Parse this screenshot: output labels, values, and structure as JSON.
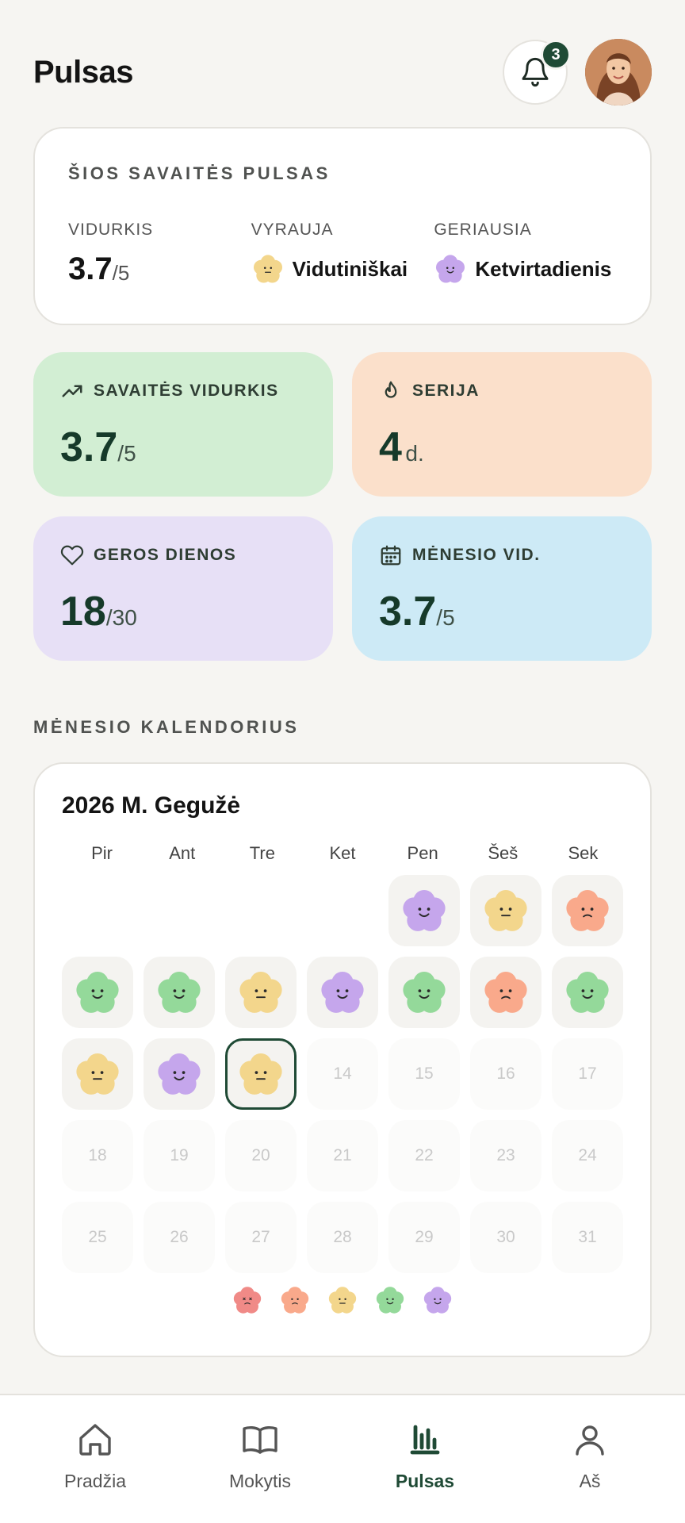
{
  "header": {
    "title": "Pulsas",
    "notification_count": "3"
  },
  "week_summary": {
    "title": "ŠIOS SAVAITĖS PULSAS",
    "average_label": "VIDURKIS",
    "average_value": "3.7",
    "average_denominator": "/5",
    "dominant_label": "VYRAUJA",
    "dominant_value": "Vidutiniškai",
    "best_label": "GERIAUSIA",
    "best_value": "Ketvirtadienis"
  },
  "stats": {
    "weekly_avg": {
      "label": "SAVAITĖS VIDURKIS",
      "value": "3.7",
      "denominator": "/5"
    },
    "streak": {
      "label": "SERIJA",
      "value": "4",
      "unit": "d."
    },
    "good_days": {
      "label": "GEROS DIENOS",
      "value": "18",
      "denominator": "/30"
    },
    "month_avg": {
      "label": "MĖNESIO VID.",
      "value": "3.7",
      "denominator": "/5"
    }
  },
  "calendar": {
    "section_label": "MĖNESIO KALENDORIUS",
    "month_title": "2026 M. Gegužė",
    "weekdays": [
      "Pir",
      "Ant",
      "Tre",
      "Ket",
      "Pen",
      "Šeš",
      "Sek"
    ],
    "today": 13,
    "first_weekday_offset": 4,
    "days_in_month": 31,
    "moods": {
      "1": 5,
      "2": 3,
      "3": 2,
      "4": 4,
      "5": 4,
      "6": 3,
      "7": 5,
      "8": 4,
      "9": 2,
      "10": 4,
      "11": 3,
      "12": 5,
      "13": 3
    },
    "legend": [
      1,
      2,
      3,
      4,
      5
    ]
  },
  "mood_colors": {
    "1": "#f08a87",
    "2": "#f9a98b",
    "3": "#f3d68c",
    "4": "#94d99a",
    "5": "#c5a6ec"
  },
  "nav": {
    "items": [
      {
        "label": "Pradžia",
        "icon": "home-icon"
      },
      {
        "label": "Mokytis",
        "icon": "book-icon"
      },
      {
        "label": "Pulsas",
        "icon": "bar-chart-icon"
      },
      {
        "label": "Aš",
        "icon": "user-icon"
      }
    ],
    "active": 2
  }
}
